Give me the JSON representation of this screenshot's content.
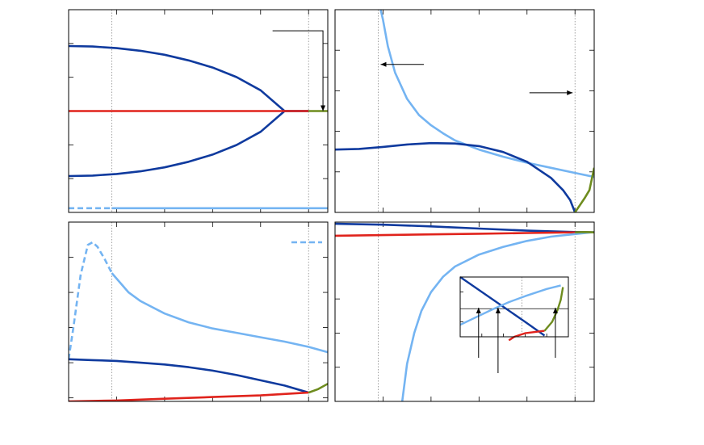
{
  "colors": {
    "dark_blue": "#0f3a9e",
    "light_blue": "#74b4f2",
    "red": "#e0231c",
    "olive_green": "#6e8c1e",
    "frame": "#000000",
    "guide": "#888888"
  },
  "chart_data": [
    {
      "id": "top-left",
      "type": "line",
      "title": "",
      "xlabel": "",
      "ylabel": "",
      "xlim": [
        0,
        1.08
      ],
      "ylim": [
        -1.2,
        1.2
      ],
      "x_ticks": [
        0.2,
        0.4,
        0.6,
        0.8,
        1.0
      ],
      "y_ticks": [
        -0.8,
        -0.4,
        0.0,
        0.4,
        0.8
      ],
      "vertical_guides": [
        0.18,
        1.0
      ],
      "series": [
        {
          "color": "dark_blue",
          "style": "solid",
          "points": [
            [
              0,
              0.77
            ],
            [
              0.1,
              0.764
            ],
            [
              0.2,
              0.745
            ],
            [
              0.3,
              0.713
            ],
            [
              0.4,
              0.666
            ],
            [
              0.5,
              0.6
            ],
            [
              0.6,
              0.515
            ],
            [
              0.7,
              0.402
            ],
            [
              0.8,
              0.246
            ],
            [
              0.9,
              0.0
            ],
            [
              1.0,
              0.0
            ]
          ]
        },
        {
          "color": "dark_blue",
          "style": "solid",
          "points": [
            [
              0,
              -0.77
            ],
            [
              0.1,
              -0.764
            ],
            [
              0.2,
              -0.745
            ],
            [
              0.3,
              -0.713
            ],
            [
              0.4,
              -0.666
            ],
            [
              0.5,
              -0.6
            ],
            [
              0.6,
              -0.515
            ],
            [
              0.7,
              -0.402
            ],
            [
              0.8,
              -0.246
            ],
            [
              0.9,
              0.0
            ],
            [
              1.0,
              0.0
            ]
          ]
        },
        {
          "color": "red",
          "style": "solid",
          "points": [
            [
              0,
              0
            ],
            [
              1.0,
              0
            ]
          ]
        },
        {
          "color": "olive_green",
          "style": "solid",
          "points": [
            [
              1.0,
              0
            ],
            [
              1.08,
              0
            ]
          ]
        },
        {
          "color": "light_blue",
          "style": "dashed",
          "points": [
            [
              0,
              -1.15
            ],
            [
              0.18,
              -1.15
            ]
          ]
        },
        {
          "color": "light_blue",
          "style": "solid",
          "points": [
            [
              0.18,
              -1.15
            ],
            [
              1.08,
              -1.15
            ]
          ]
        }
      ],
      "annotations": [
        {
          "type": "elbow-arrow",
          "from": [
            0.85,
            0.95
          ],
          "corner": [
            1.06,
            0.95
          ],
          "to": [
            1.06,
            0.0
          ]
        }
      ]
    },
    {
      "id": "top-right",
      "type": "line",
      "title": "",
      "xlabel": "",
      "ylabel": "",
      "xlim": [
        0,
        1.08
      ],
      "ylim": [
        0,
        1.0
      ],
      "x_ticks": [
        0.2,
        0.4,
        0.6,
        0.8,
        1.0
      ],
      "y_ticks": [
        0.2,
        0.4,
        0.6,
        0.8
      ],
      "vertical_guides": [
        0.18,
        1.0
      ],
      "series": [
        {
          "color": "light_blue",
          "style": "solid",
          "points": [
            [
              0.19,
              1.0
            ],
            [
              0.2,
              0.95
            ],
            [
              0.22,
              0.82
            ],
            [
              0.25,
              0.69
            ],
            [
              0.3,
              0.56
            ],
            [
              0.35,
              0.48
            ],
            [
              0.4,
              0.43
            ],
            [
              0.45,
              0.39
            ],
            [
              0.5,
              0.355
            ],
            [
              0.6,
              0.31
            ],
            [
              0.7,
              0.275
            ],
            [
              0.8,
              0.245
            ],
            [
              0.9,
              0.22
            ],
            [
              1.0,
              0.195
            ],
            [
              1.08,
              0.175
            ]
          ]
        },
        {
          "color": "dark_blue",
          "style": "solid",
          "points": [
            [
              0,
              0.31
            ],
            [
              0.1,
              0.313
            ],
            [
              0.2,
              0.323
            ],
            [
              0.3,
              0.335
            ],
            [
              0.4,
              0.342
            ],
            [
              0.5,
              0.34
            ],
            [
              0.6,
              0.327
            ],
            [
              0.7,
              0.298
            ],
            [
              0.8,
              0.25
            ],
            [
              0.9,
              0.17
            ],
            [
              0.95,
              0.11
            ],
            [
              0.98,
              0.06
            ],
            [
              1.0,
              0.0
            ]
          ]
        },
        {
          "color": "olive_green",
          "style": "solid",
          "points": [
            [
              1.0,
              0.0
            ],
            [
              1.02,
              0.035
            ],
            [
              1.04,
              0.07
            ],
            [
              1.06,
              0.11
            ],
            [
              1.08,
              0.22
            ]
          ]
        }
      ],
      "annotations": [
        {
          "type": "arrow",
          "from": [
            0.37,
            0.73
          ],
          "to": [
            0.19,
            0.73
          ]
        },
        {
          "type": "arrow",
          "from": [
            0.81,
            0.59
          ],
          "to": [
            0.99,
            0.59
          ]
        }
      ]
    },
    {
      "id": "bottom-left",
      "type": "line",
      "title": "",
      "xlabel": "",
      "ylabel": "",
      "xlim": [
        0,
        1.08
      ],
      "ylim": [
        -0.02,
        1.0
      ],
      "x_ticks": [
        0.2,
        0.4,
        0.6,
        0.8,
        1.0
      ],
      "y_ticks": [
        0.0,
        0.2,
        0.4,
        0.6,
        0.8
      ],
      "vertical_guides": [
        0.18,
        1.0
      ],
      "series": [
        {
          "color": "light_blue",
          "style": "dashed",
          "points": [
            [
              0,
              0.22
            ],
            [
              0.02,
              0.4
            ],
            [
              0.05,
              0.7
            ],
            [
              0.08,
              0.87
            ],
            [
              0.1,
              0.885
            ],
            [
              0.12,
              0.86
            ],
            [
              0.15,
              0.79
            ],
            [
              0.18,
              0.71
            ]
          ]
        },
        {
          "color": "light_blue",
          "style": "solid",
          "points": [
            [
              0.18,
              0.71
            ],
            [
              0.25,
              0.6
            ],
            [
              0.3,
              0.55
            ],
            [
              0.4,
              0.48
            ],
            [
              0.5,
              0.43
            ],
            [
              0.6,
              0.395
            ],
            [
              0.7,
              0.37
            ],
            [
              0.8,
              0.345
            ],
            [
              0.9,
              0.32
            ],
            [
              1.0,
              0.29
            ],
            [
              1.08,
              0.26
            ]
          ]
        },
        {
          "color": "dark_blue",
          "style": "solid",
          "points": [
            [
              0,
              0.22
            ],
            [
              0.1,
              0.215
            ],
            [
              0.2,
              0.21
            ],
            [
              0.3,
              0.2
            ],
            [
              0.4,
              0.19
            ],
            [
              0.5,
              0.175
            ],
            [
              0.6,
              0.155
            ],
            [
              0.7,
              0.13
            ],
            [
              0.8,
              0.1
            ],
            [
              0.9,
              0.07
            ],
            [
              1.0,
              0.03
            ]
          ]
        },
        {
          "color": "red",
          "style": "solid",
          "points": [
            [
              0,
              -0.02
            ],
            [
              0.2,
              -0.015
            ],
            [
              0.4,
              -0.005
            ],
            [
              0.6,
              0.005
            ],
            [
              0.8,
              0.014
            ],
            [
              1.0,
              0.03
            ]
          ]
        },
        {
          "color": "olive_green",
          "style": "solid",
          "points": [
            [
              1.0,
              0.03
            ],
            [
              1.04,
              0.05
            ],
            [
              1.08,
              0.08
            ]
          ]
        }
      ],
      "legend": [
        {
          "color": "light_blue",
          "style": "dashed",
          "label": ""
        }
      ]
    },
    {
      "id": "bottom-right",
      "type": "line",
      "title": "",
      "xlabel": "",
      "ylabel": "",
      "xlim": [
        0,
        1.08
      ],
      "ylim": [
        -1.0,
        0.05
      ],
      "x_ticks": [
        0.2,
        0.4,
        0.6,
        0.8,
        1.0
      ],
      "y_ticks": [
        -0.8,
        -0.6,
        -0.4
      ],
      "vertical_guides": [
        0.18,
        1.0
      ],
      "series": [
        {
          "color": "dark_blue",
          "style": "solid",
          "points": [
            [
              0,
              0.04
            ],
            [
              0.2,
              0.035
            ],
            [
              0.4,
              0.025
            ],
            [
              0.6,
              0.012
            ],
            [
              0.8,
              0.0
            ],
            [
              1.0,
              -0.008
            ],
            [
              1.08,
              -0.01
            ]
          ]
        },
        {
          "color": "red",
          "style": "solid",
          "points": [
            [
              0,
              -0.03
            ],
            [
              0.2,
              -0.026
            ],
            [
              0.4,
              -0.022
            ],
            [
              0.6,
              -0.018
            ],
            [
              0.8,
              -0.014
            ],
            [
              1.0,
              -0.01
            ],
            [
              1.08,
              -0.01
            ]
          ]
        },
        {
          "color": "light_blue",
          "style": "solid",
          "points": [
            [
              0.28,
              -1.0
            ],
            [
              0.3,
              -0.78
            ],
            [
              0.33,
              -0.6
            ],
            [
              0.36,
              -0.47
            ],
            [
              0.4,
              -0.36
            ],
            [
              0.45,
              -0.27
            ],
            [
              0.5,
              -0.21
            ],
            [
              0.6,
              -0.14
            ],
            [
              0.7,
              -0.095
            ],
            [
              0.8,
              -0.06
            ],
            [
              0.9,
              -0.035
            ],
            [
              1.0,
              -0.02
            ],
            [
              1.08,
              -0.008
            ]
          ]
        },
        {
          "color": "olive_green",
          "style": "solid",
          "points": [
            [
              1.0,
              -0.01
            ],
            [
              1.04,
              -0.008
            ],
            [
              1.08,
              -0.01
            ]
          ]
        }
      ],
      "inset": {
        "xlim": [
          0,
          1.0
        ],
        "ylim": [
          0,
          1.0
        ],
        "horizontal_guide": 0.47,
        "vertical_guide": 0.57,
        "series": [
          {
            "color": "dark_blue",
            "style": "solid",
            "points": [
              [
                0,
                1.0
              ],
              [
                0.2,
                0.75
              ],
              [
                0.4,
                0.5
              ],
              [
                0.6,
                0.25
              ],
              [
                0.78,
                0.02
              ]
            ]
          },
          {
            "color": "light_blue",
            "style": "solid",
            "points": [
              [
                0,
                0.2
              ],
              [
                0.15,
                0.33
              ],
              [
                0.3,
                0.46
              ],
              [
                0.45,
                0.58
              ],
              [
                0.6,
                0.68
              ],
              [
                0.8,
                0.8
              ],
              [
                0.93,
                0.86
              ]
            ]
          },
          {
            "color": "red",
            "style": "solid",
            "points": [
              [
                0.45,
                -0.06
              ],
              [
                0.5,
                0.0
              ],
              [
                0.6,
                0.06
              ],
              [
                0.78,
                0.1
              ]
            ]
          },
          {
            "color": "olive_green",
            "style": "solid",
            "points": [
              [
                0.78,
                0.1
              ],
              [
                0.85,
                0.25
              ],
              [
                0.9,
                0.45
              ],
              [
                0.93,
                0.62
              ],
              [
                0.95,
                0.83
              ]
            ]
          }
        ],
        "pointer_arrows": [
          {
            "x": 0.17,
            "from_y": -0.38
          },
          {
            "x": 0.35,
            "from_y": -0.74
          },
          {
            "x": 0.88,
            "from_y": -0.38
          }
        ]
      }
    }
  ]
}
